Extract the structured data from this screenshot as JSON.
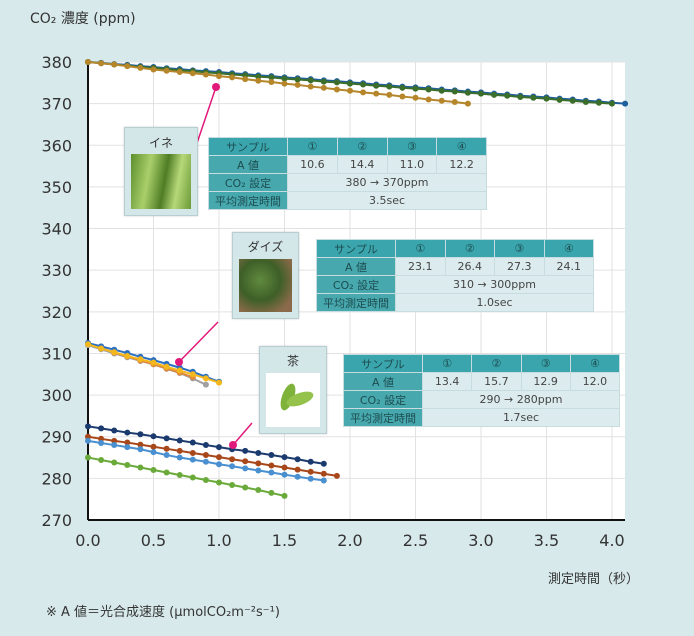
{
  "chart_data": {
    "type": "line",
    "ylabel": "CO₂ 濃度 (ppm)",
    "xlabel": "測定時間（秒）",
    "xlim": [
      0,
      4.1
    ],
    "ylim": [
      270,
      380
    ],
    "x_ticks": [
      "0.0",
      "0.5",
      "1.0",
      "1.5",
      "2.0",
      "2.5",
      "3.0",
      "3.5",
      "4.0"
    ],
    "y_ticks": [
      "380",
      "370",
      "360",
      "350",
      "340",
      "330",
      "320",
      "310",
      "300",
      "290",
      "280",
      "270"
    ],
    "grid": true,
    "x_step": 0.1,
    "series": [
      {
        "group": "rice",
        "color": "#1f5f9e",
        "values": [
          380.0,
          379.8,
          379.5,
          379.3,
          379.0,
          378.8,
          378.5,
          378.3,
          378.0,
          377.8,
          377.6,
          377.3,
          377.1,
          376.8,
          376.6,
          376.3,
          376.1,
          375.9,
          375.6,
          375.4,
          375.1,
          374.9,
          374.6,
          374.4,
          374.1,
          373.9,
          373.7,
          373.4,
          373.2,
          372.9,
          372.7,
          372.4,
          372.2,
          371.9,
          371.7,
          371.5,
          371.2,
          371.0,
          370.7,
          370.5,
          370.2,
          370.0
        ]
      },
      {
        "group": "rice",
        "color": "#3b6e2a",
        "values": [
          380.0,
          379.7,
          379.4,
          379.1,
          378.8,
          378.6,
          378.3,
          378.0,
          377.8,
          377.5,
          377.3,
          377.0,
          376.8,
          376.5,
          376.3,
          376.0,
          375.8,
          375.6,
          375.3,
          375.1,
          374.8,
          374.6,
          374.3,
          374.1,
          373.8,
          373.6,
          373.4,
          373.1,
          372.9,
          372.6,
          372.4,
          372.1,
          371.9,
          371.6,
          371.4,
          371.2,
          370.9,
          370.7,
          370.4,
          370.2,
          370.0
        ]
      },
      {
        "group": "rice",
        "color": "#b5862a",
        "values": [
          380.0,
          379.7,
          379.4,
          379.0,
          378.6,
          378.2,
          377.9,
          377.6,
          377.3,
          377.0,
          376.6,
          376.3,
          375.9,
          375.5,
          375.2,
          374.8,
          374.5,
          374.1,
          373.8,
          373.4,
          373.1,
          372.7,
          372.4,
          372.1,
          371.7,
          371.4,
          371.0,
          370.7,
          370.4,
          370.0
        ]
      },
      {
        "group": "soybean",
        "color": "#a0a0a0",
        "values": [
          312.0,
          311.0,
          310.0,
          309.1,
          308.2,
          307.4,
          306.3,
          305.3,
          304.0,
          302.5
        ]
      },
      {
        "group": "soybean",
        "color": "#e08a3a",
        "values": [
          312.3,
          311.3,
          310.2,
          309.3,
          308.3,
          307.4,
          306.4,
          305.4,
          304.3
        ]
      },
      {
        "group": "soybean",
        "color": "#2c6fbf",
        "values": [
          312.5,
          311.7,
          310.9,
          310.1,
          309.2,
          308.4,
          307.5,
          306.6,
          305.6,
          304.4,
          303.2
        ]
      },
      {
        "group": "soybean",
        "color": "#f5b81c",
        "values": [
          312.2,
          311.2,
          310.3,
          309.4,
          308.6,
          307.8,
          306.8,
          305.9,
          305.0,
          304.0,
          303.0
        ]
      },
      {
        "group": "tea",
        "color": "#1b3a6e",
        "values": [
          292.5,
          292.0,
          291.5,
          291.0,
          290.6,
          290.1,
          289.6,
          289.1,
          288.6,
          288.0,
          287.5,
          287.0,
          286.6,
          286.1,
          285.6,
          285.1,
          284.6,
          284.0,
          283.5
        ]
      },
      {
        "group": "tea",
        "color": "#a8481a",
        "values": [
          290.0,
          289.5,
          289.0,
          288.6,
          288.1,
          287.6,
          287.1,
          286.6,
          286.1,
          285.6,
          285.1,
          284.6,
          284.1,
          283.6,
          283.1,
          282.6,
          282.1,
          281.6,
          281.1,
          280.6
        ]
      },
      {
        "group": "tea",
        "color": "#4a90d0",
        "values": [
          289.0,
          288.5,
          288.0,
          287.5,
          287.0,
          286.3,
          285.6,
          285.0,
          284.5,
          284.0,
          283.4,
          282.9,
          282.4,
          281.9,
          281.4,
          280.9,
          280.4,
          279.9,
          279.5
        ]
      },
      {
        "group": "tea",
        "color": "#6aaa3a",
        "values": [
          285.0,
          284.4,
          283.8,
          283.2,
          282.6,
          282.0,
          281.4,
          280.8,
          280.2,
          279.6,
          279.0,
          278.4,
          277.8,
          277.2,
          276.5,
          275.8
        ]
      }
    ],
    "annotation_color": "#e0197a"
  },
  "note": "※ A 値＝光合成速度 (μmolCO₂m⁻²s⁻¹)",
  "samples": [
    {
      "name": "イネ",
      "table": {
        "header": [
          "サンプル",
          "①",
          "②",
          "③",
          "④"
        ],
        "a_label": "A 値",
        "a_values": [
          "10.6",
          "14.4",
          "11.0",
          "12.2"
        ],
        "co2_label": "CO₂ 設定",
        "co2_value": "380 → 370ppm",
        "time_label": "平均測定時間",
        "time_value": "3.5sec"
      }
    },
    {
      "name": "ダイズ",
      "table": {
        "header": [
          "サンプル",
          "①",
          "②",
          "③",
          "④"
        ],
        "a_label": "A 値",
        "a_values": [
          "23.1",
          "26.4",
          "27.3",
          "24.1"
        ],
        "co2_label": "CO₂ 設定",
        "co2_value": "310 → 300ppm",
        "time_label": "平均測定時間",
        "time_value": "1.0sec"
      }
    },
    {
      "name": "茶",
      "table": {
        "header": [
          "サンプル",
          "①",
          "②",
          "③",
          "④"
        ],
        "a_label": "A 値",
        "a_values": [
          "13.4",
          "15.7",
          "12.9",
          "12.0"
        ],
        "co2_label": "CO₂ 設定",
        "co2_value": "290 → 280ppm",
        "time_label": "平均測定時間",
        "time_value": "1.7sec"
      }
    }
  ]
}
